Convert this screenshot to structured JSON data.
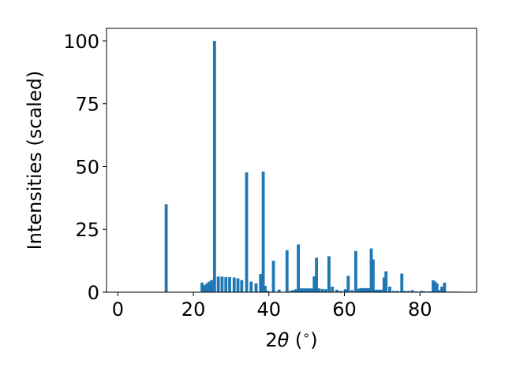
{
  "chart_data": {
    "type": "bar",
    "title": "",
    "xlabel_parts": [
      "2",
      "θ",
      " (",
      "∘",
      ")"
    ],
    "ylabel": "Intensities (scaled)",
    "xlim": [
      -3,
      95
    ],
    "ylim": [
      0,
      105
    ],
    "xticks": [
      0,
      20,
      40,
      60,
      80
    ],
    "yticks": [
      0,
      25,
      50,
      75,
      100
    ],
    "bar_width": 0.8,
    "grid": false,
    "colors": {
      "bar": "#1f77b4"
    },
    "x": [
      12.8,
      22.3,
      23.0,
      23.6,
      24.2,
      24.8,
      25.6,
      26.6,
      27.6,
      28.6,
      29.6,
      30.8,
      31.8,
      32.8,
      34.1,
      35.3,
      36.6,
      37.8,
      38.5,
      39.0,
      39.7,
      41.2,
      42.7,
      44.8,
      45.7,
      46.4,
      47.2,
      47.8,
      48.4,
      49.0,
      49.6,
      50.2,
      50.8,
      51.4,
      52.0,
      52.6,
      53.2,
      54.1,
      55.0,
      55.9,
      56.8,
      58.0,
      59.0,
      60.2,
      61.0,
      62.0,
      63.0,
      63.8,
      64.4,
      65.1,
      65.8,
      66.4,
      67.1,
      67.6,
      68.3,
      69.0,
      69.7,
      70.5,
      71.0,
      72.0,
      73.0,
      74.0,
      75.2,
      76.0,
      77.0,
      78.0,
      79.0,
      80.5,
      81.3,
      82.6,
      83.5,
      84.0,
      84.5,
      85.2,
      85.8,
      86.5,
      87.5,
      88.4,
      89.0,
      89.8,
      90.5
    ],
    "values": [
      35.0,
      3.8,
      2.8,
      3.5,
      4.2,
      4.8,
      100.0,
      6.2,
      6.2,
      6.0,
      6.0,
      5.8,
      5.5,
      4.8,
      47.7,
      4.2,
      3.5,
      7.2,
      48.0,
      2.5,
      0.5,
      12.5,
      1.0,
      16.7,
      0.5,
      0.8,
      1.2,
      19.0,
      1.5,
      1.5,
      1.5,
      1.5,
      1.5,
      1.5,
      6.3,
      13.7,
      1.5,
      1.3,
      1.2,
      14.3,
      2.2,
      1.0,
      0.5,
      1.2,
      6.5,
      0.8,
      16.4,
      1.4,
      1.6,
      1.6,
      1.6,
      1.6,
      17.4,
      13.0,
      1.0,
      1.0,
      1.0,
      5.8,
      8.3,
      2.2,
      0.5,
      0.5,
      7.4,
      0.5,
      0.5,
      0.8,
      0.3,
      0.5,
      0.3,
      0.3,
      4.7,
      4.2,
      3.5,
      0.8,
      2.2,
      3.8,
      0.2,
      0.2,
      0.2,
      0.2,
      0.2
    ]
  }
}
